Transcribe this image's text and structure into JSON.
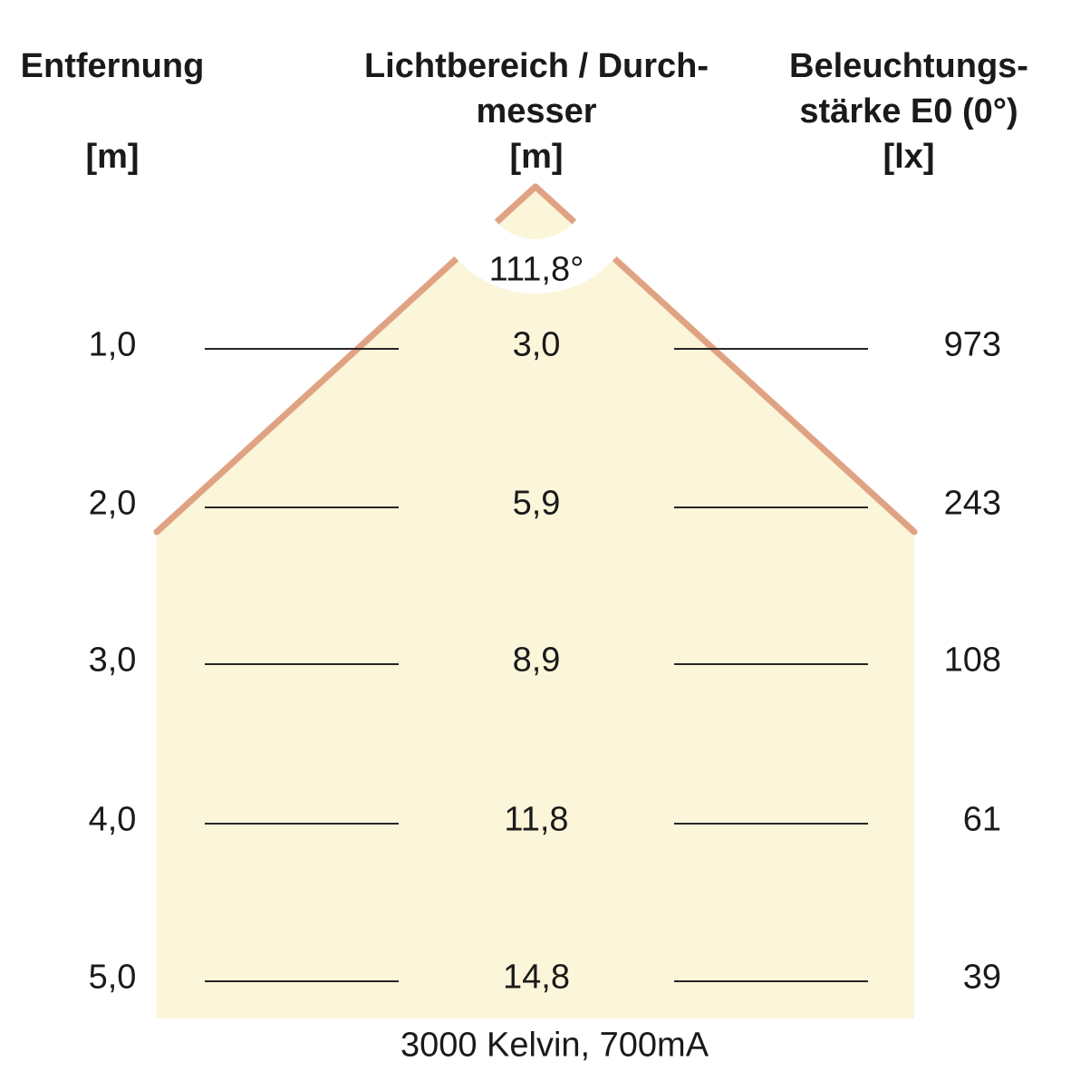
{
  "columns": {
    "distance": {
      "title": "Entfernung\n\n[m]"
    },
    "diameter": {
      "title": "Lichtbereich / Durch-\nmesser\n[m]"
    },
    "illuminance": {
      "title": "Beleuchtungs-\nstärke E0 (0°)\n[lx]"
    }
  },
  "beam_angle_label": "111,8°",
  "rows": [
    {
      "distance": "1,0",
      "diameter": "3,0",
      "illuminance": "973"
    },
    {
      "distance": "2,0",
      "diameter": "5,9",
      "illuminance": "243"
    },
    {
      "distance": "3,0",
      "diameter": "8,9",
      "illuminance": "108"
    },
    {
      "distance": "4,0",
      "diameter": "11,8",
      "illuminance": "61"
    },
    {
      "distance": "5,0",
      "diameter": "14,8",
      "illuminance": "39"
    }
  ],
  "caption": "3000 Kelvin, 700mA",
  "colors": {
    "background": "#FFFFFF",
    "cone_fill": "#FBF5DA",
    "cone_edge": "#DFA383",
    "line": "#262626",
    "text": "#1A1A1A"
  },
  "chart_data": {
    "type": "table",
    "beam_angle_deg": "111,8°",
    "columns": [
      "Entfernung [m]",
      "Lichtbereich / Durchmesser [m]",
      "Beleuchtungsstärke E0 (0°) [lx]"
    ],
    "distance_m": [
      1.0,
      2.0,
      3.0,
      4.0,
      5.0
    ],
    "diameter_m": [
      3.0,
      5.9,
      8.9,
      11.8,
      14.8
    ],
    "illuminance_lx": [
      973,
      243,
      108,
      61,
      39
    ],
    "condition": "3000 Kelvin, 700mA"
  }
}
